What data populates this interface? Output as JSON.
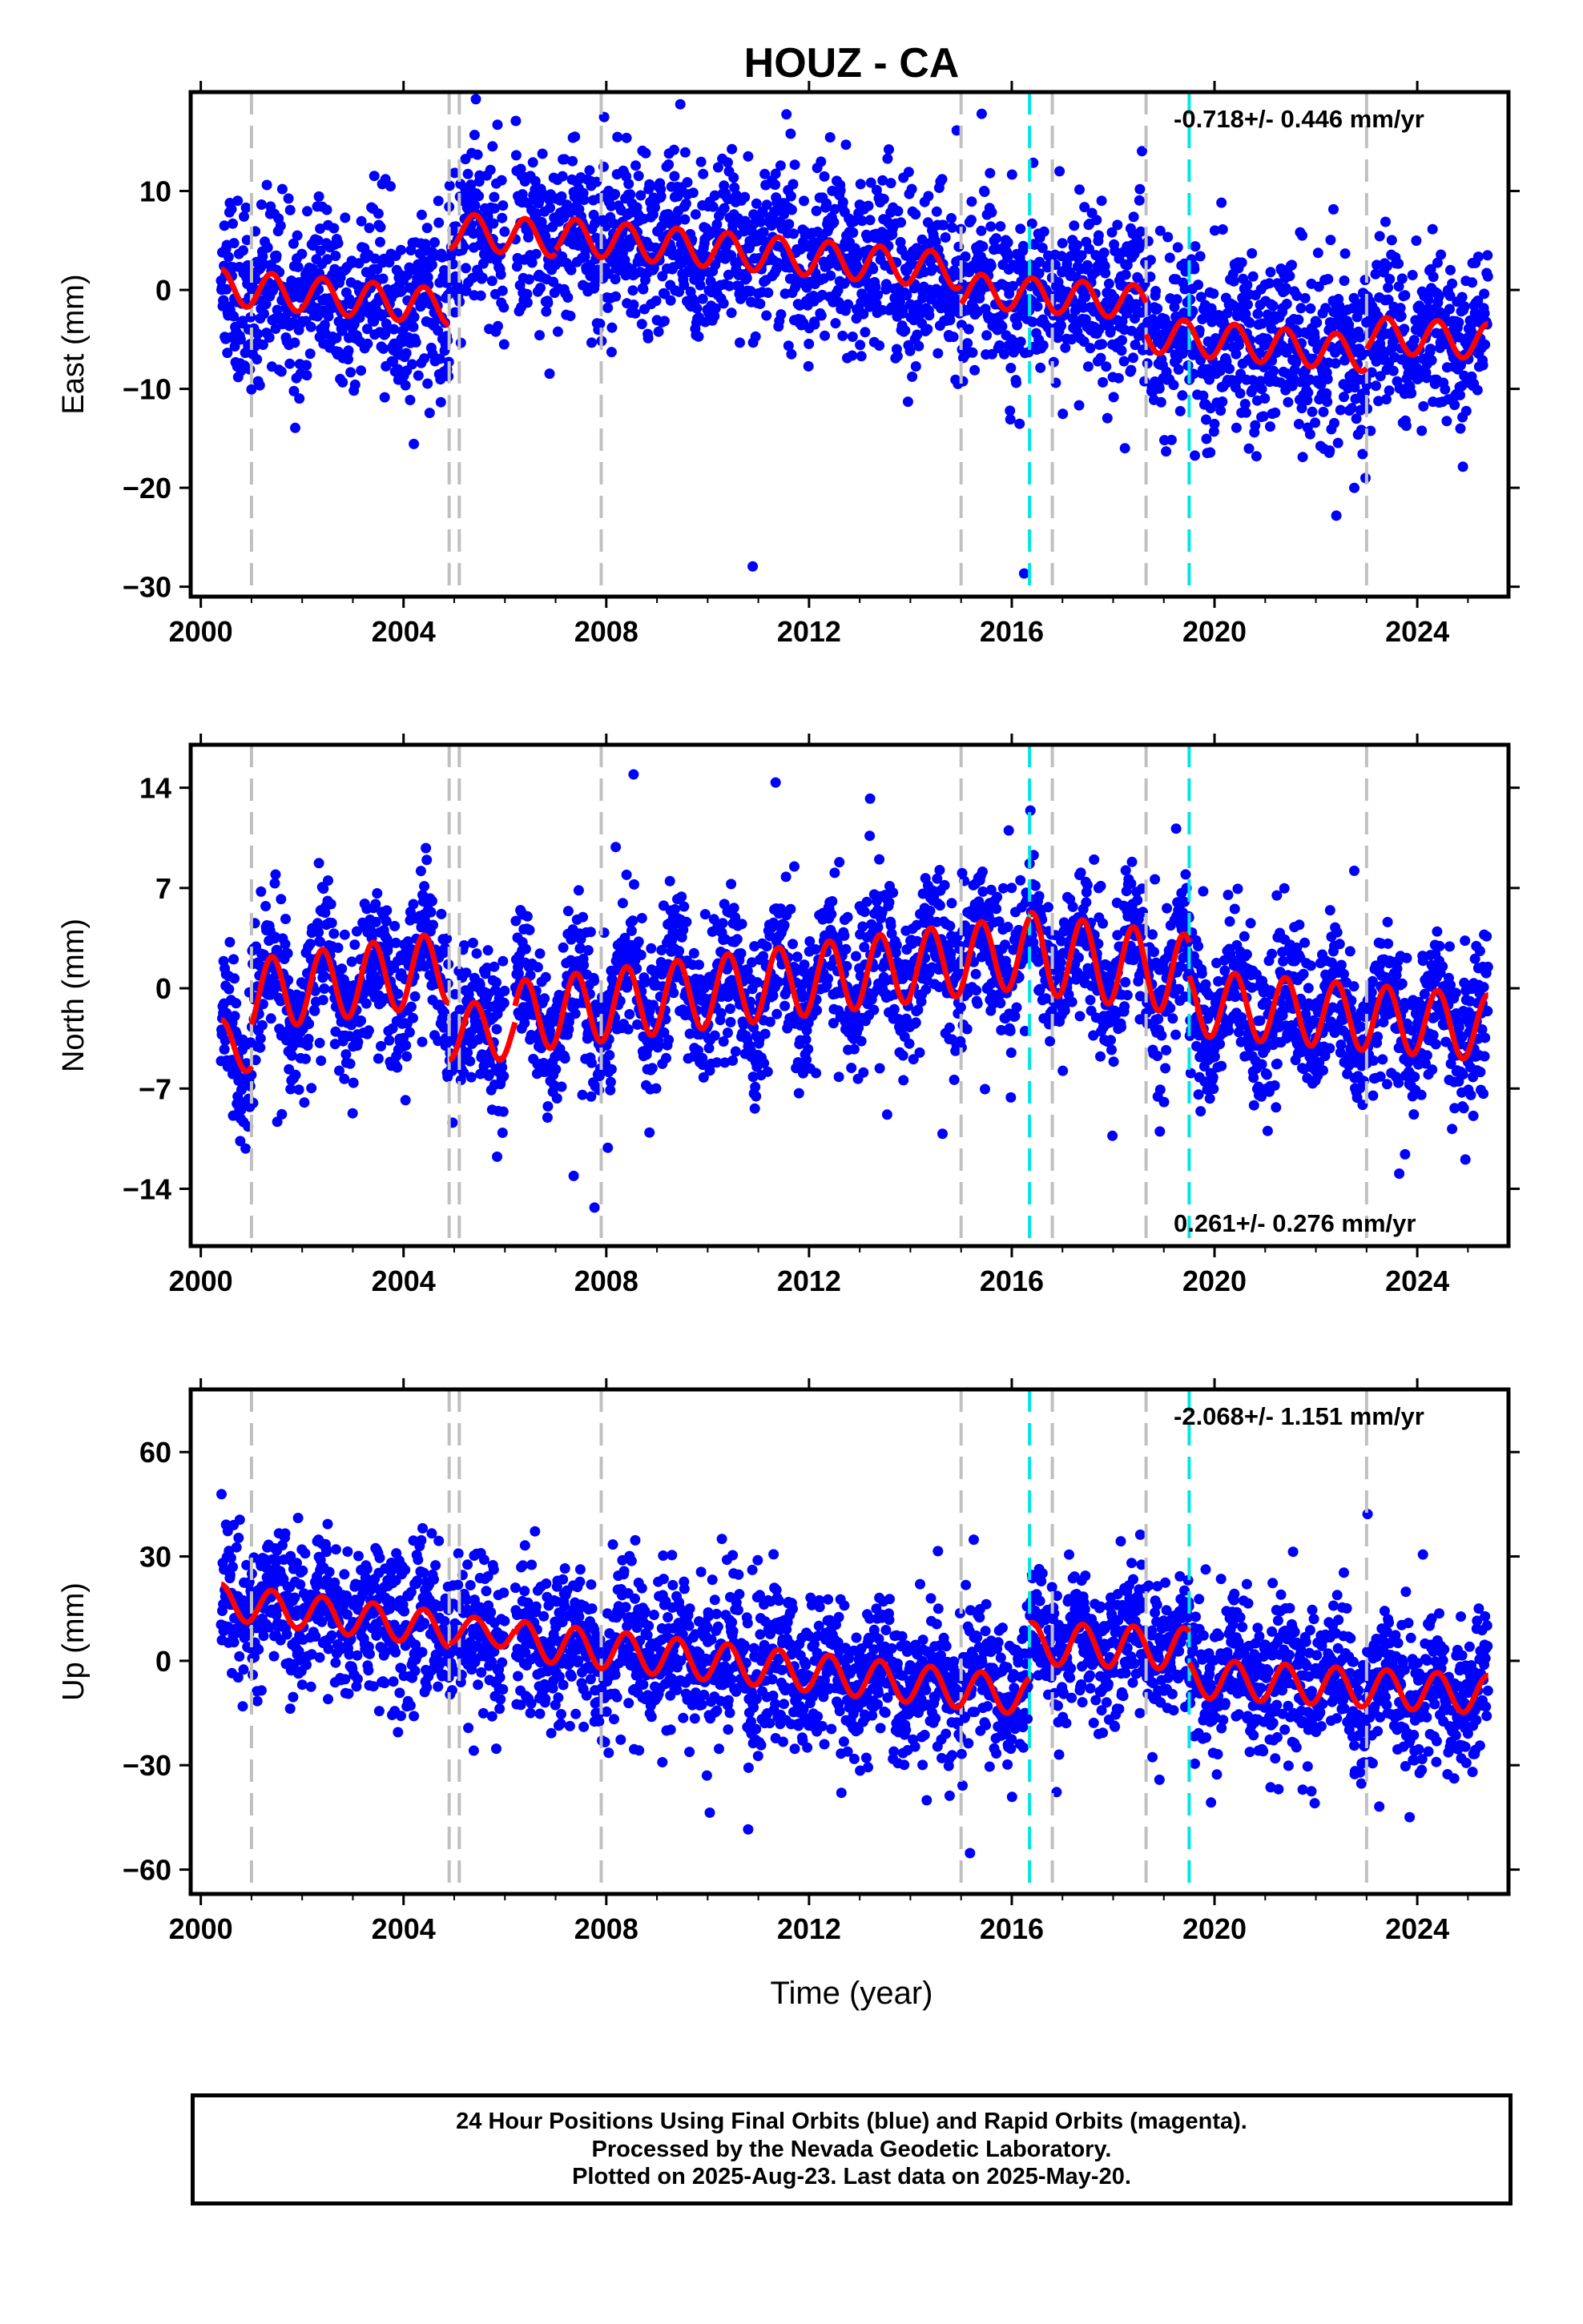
{
  "title": "HOUZ - CA",
  "colors": {
    "points": "#0000ff",
    "fit": "#ff0000",
    "equipment_change": "#c0c0c0",
    "earthquake": "#00e5e5",
    "axis": "#000000"
  },
  "x_axis": {
    "label": "Time (year)",
    "range": [
      1999.8,
      2025.8
    ],
    "ticks": [
      2000,
      2004,
      2008,
      2012,
      2016,
      2020,
      2024
    ],
    "tick_labels": [
      "2000",
      "2004",
      "2008",
      "2012",
      "2016",
      "2020",
      "2024"
    ]
  },
  "vertical_lines": {
    "gray_dashed": [
      2001.0,
      2004.9,
      2005.1,
      2007.9,
      2015.0,
      2016.8,
      2018.65,
      2023.0
    ],
    "cyan_dashed": [
      2016.35,
      2019.5
    ]
  },
  "chart_data": [
    {
      "type": "scatter",
      "panel": "east",
      "ylabel": "East (mm)",
      "ylim": [
        -31,
        20
      ],
      "yticks": [
        10,
        0,
        -10,
        -20,
        -30
      ],
      "ytick_labels": [
        "10",
        "0",
        "−10",
        "−20",
        "−30"
      ],
      "rate_label": "-0.718+/- 0.446 mm/yr",
      "rate_position": "top-right",
      "fit_series": {
        "name": "fit",
        "segments": [
          {
            "start": 2000.4,
            "end": 2004.9,
            "offset": 0.3,
            "slope": -0.45,
            "amp": 1.8
          },
          {
            "start": 2004.9,
            "end": 2007.0,
            "offset": 6.0,
            "slope": -0.4,
            "amp": 1.8
          },
          {
            "start": 2007.0,
            "end": 2015.0,
            "offset": 5.5,
            "slope": -0.45,
            "amp": 1.8
          },
          {
            "start": 2015.0,
            "end": 2018.65,
            "offset": 0.0,
            "slope": -0.35,
            "amp": 1.7
          },
          {
            "start": 2018.65,
            "end": 2023.0,
            "offset": -4.5,
            "slope": -0.45,
            "amp": 1.8
          },
          {
            "start": 2023.0,
            "end": 2025.4,
            "offset": -4.5,
            "slope": -0.3,
            "amp": 1.8
          }
        ]
      },
      "points": {
        "seed": 11,
        "noise_sd": 4.2,
        "outlier_rate": 0.02,
        "outlier_sd": 9,
        "step_days": 3
      }
    },
    {
      "type": "scatter",
      "panel": "north",
      "ylabel": "North (mm)",
      "ylim": [
        -18,
        17
      ],
      "yticks": [
        14,
        7,
        0,
        -7,
        -14
      ],
      "ytick_labels": [
        "14",
        "7",
        "0",
        "−7",
        "−14"
      ],
      "rate_label": "0.261+/- 0.276 mm/yr",
      "rate_position": "bottom-right",
      "fit_series": {
        "name": "fit",
        "segments": [
          {
            "start": 2000.4,
            "end": 2001.0,
            "offset": -4.0,
            "slope": 0.0,
            "amp": 1.8
          },
          {
            "start": 2001.0,
            "end": 2004.9,
            "offset": -0.5,
            "slope": 0.5,
            "amp": 2.5
          },
          {
            "start": 2004.9,
            "end": 2006.2,
            "offset": -3.0,
            "slope": 0.0,
            "amp": 2.0
          },
          {
            "start": 2006.2,
            "end": 2016.35,
            "offset": -2.0,
            "slope": 0.45,
            "amp": 2.5
          },
          {
            "start": 2016.35,
            "end": 2019.5,
            "offset": 2.5,
            "slope": -0.5,
            "amp": 2.8
          },
          {
            "start": 2019.5,
            "end": 2025.4,
            "offset": -1.0,
            "slope": -0.3,
            "amp": 2.3
          }
        ]
      },
      "points": {
        "seed": 23,
        "noise_sd": 2.6,
        "outlier_rate": 0.02,
        "outlier_sd": 6,
        "step_days": 3
      }
    },
    {
      "type": "scatter",
      "panel": "up",
      "ylabel": "Up (mm)",
      "ylim": [
        -67,
        78
      ],
      "yticks": [
        60,
        30,
        0,
        -30,
        -60
      ],
      "ytick_labels": [
        "60",
        "30",
        "0",
        "−30",
        "−60"
      ],
      "rate_label": "-2.068+/- 1.151 mm/yr",
      "rate_position": "top-right",
      "fit_series": {
        "name": "fit",
        "segments": [
          {
            "start": 2000.4,
            "end": 2004.9,
            "offset": 17.0,
            "slope": -1.8,
            "amp": 5.0
          },
          {
            "start": 2004.9,
            "end": 2006.2,
            "offset": 9.0,
            "slope": -1.0,
            "amp": 4.0
          },
          {
            "start": 2006.2,
            "end": 2016.35,
            "offset": 6.0,
            "slope": -1.6,
            "amp": 5.5
          },
          {
            "start": 2016.35,
            "end": 2019.5,
            "offset": 5.0,
            "slope": -0.5,
            "amp": 6.0
          },
          {
            "start": 2019.5,
            "end": 2025.4,
            "offset": -5.0,
            "slope": -0.8,
            "amp": 5.5
          }
        ]
      },
      "points": {
        "seed": 37,
        "noise_sd": 10.5,
        "outlier_rate": 0.02,
        "outlier_sd": 20,
        "step_days": 3
      }
    }
  ],
  "footer": {
    "line1": "24 Hour Positions Using Final Orbits (blue) and Rapid Orbits (magenta).",
    "line2": "Processed by the Nevada Geodetic Laboratory.",
    "line3": "Plotted on 2025-Aug-23. Last data on 2025-May-20."
  }
}
